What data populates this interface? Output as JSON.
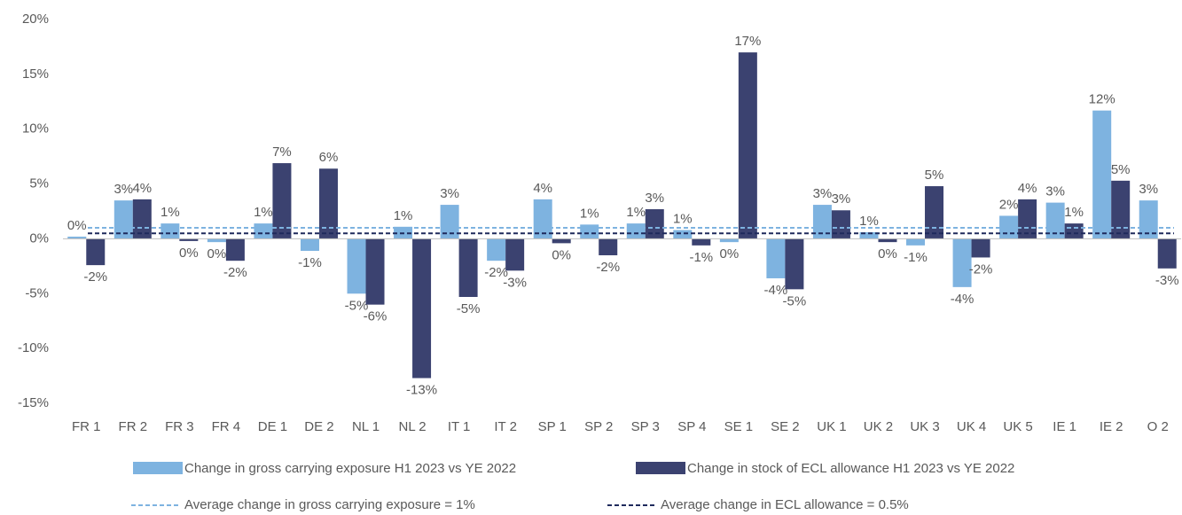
{
  "chart_data": {
    "type": "bar",
    "categories": [
      "FR 1",
      "FR 2",
      "FR 3",
      "FR 4",
      "DE 1",
      "DE 2",
      "NL 1",
      "NL 2",
      "IT 1",
      "IT 2",
      "SP 1",
      "SP 2",
      "SP 3",
      "SP 4",
      "SE 1",
      "SE 2",
      "UK 1",
      "UK 2",
      "UK 3",
      "UK 4",
      "UK 5",
      "IE 1",
      "IE 2",
      "O 2"
    ],
    "series": [
      {
        "name": "Change in gross carrying exposure H1 2023 vs YE 2022",
        "color": "#7eb3e0",
        "values": [
          0.2,
          3.5,
          1.4,
          -0.3,
          1.4,
          -1.1,
          -5.0,
          1.1,
          3.1,
          -2.0,
          3.6,
          1.3,
          1.4,
          0.8,
          -0.3,
          -3.6,
          3.1,
          0.6,
          -0.6,
          -4.4,
          2.1,
          3.3,
          11.7,
          3.5
        ],
        "value_labels": [
          "0%",
          "3%",
          "1%",
          "0%",
          "1%",
          "-1%",
          "-5%",
          "1%",
          "3%",
          "-2%",
          "4%",
          "1%",
          "1%",
          "1%",
          "0%",
          "-4%",
          "3%",
          "1%",
          "-1%",
          "-4%",
          "2%",
          "3%",
          "12%",
          "3%"
        ]
      },
      {
        "name": "Change in stock of ECL allowance H1 2023 vs YE 2022",
        "color": "#3b4270",
        "values": [
          -2.4,
          3.6,
          -0.2,
          -2.0,
          6.9,
          6.4,
          -6.0,
          -12.7,
          -5.3,
          -2.9,
          -0.4,
          -1.5,
          2.7,
          -0.6,
          17.0,
          -4.6,
          2.6,
          -0.3,
          4.8,
          -1.7,
          3.6,
          1.4,
          5.3,
          -2.7
        ],
        "value_labels": [
          "-2%",
          "4%",
          "0%",
          "-2%",
          "7%",
          "6%",
          "-6%",
          "-13%",
          "-5%",
          "-3%",
          "0%",
          "-2%",
          "3%",
          "-1%",
          "17%",
          "-5%",
          "3%",
          "0%",
          "5%",
          "-2%",
          "4%",
          "1%",
          "5%",
          "-3%"
        ]
      }
    ],
    "reference_lines": [
      {
        "value": 1,
        "label": "Average change in gross carrying exposure = 1%",
        "color": "#7eb3e0"
      },
      {
        "value": 0.5,
        "label": "Average change in ECL allowance = 0.5%",
        "color": "#1f2a5c"
      }
    ],
    "ylim": [
      -15,
      20
    ],
    "yticks": [
      {
        "value": -15,
        "label": "-15%"
      },
      {
        "value": -10,
        "label": "-10%"
      },
      {
        "value": -5,
        "label": "-5%"
      },
      {
        "value": 0,
        "label": "0%"
      },
      {
        "value": 5,
        "label": "5%"
      },
      {
        "value": 10,
        "label": "10%"
      },
      {
        "value": 15,
        "label": "15%"
      },
      {
        "value": 20,
        "label": "20%"
      }
    ],
    "grid": false
  }
}
